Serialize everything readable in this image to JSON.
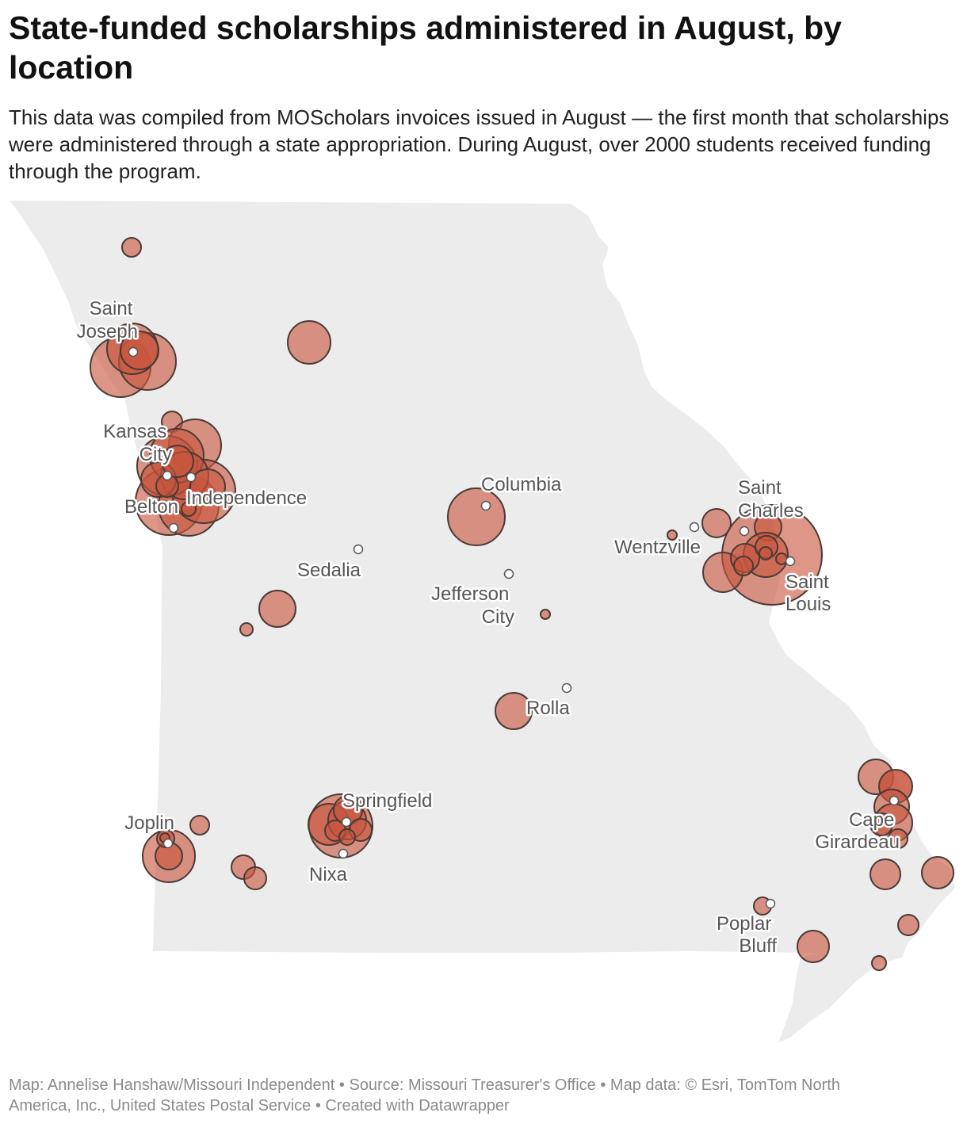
{
  "title": "State-funded scholarships administered in August, by location",
  "subtitle": "This data was compiled from MOScholars invoices issued in August — the first month that scholarships were administered through a state appropriation. During August, over 2000 students received funding through the program.",
  "footer": {
    "line1": "Map: Annelise Hanshaw/Missouri Independent • Source: Missouri Treasurer's Office • Map data: © Esri, TomTom North",
    "line2": "America, Inc., United States Postal Service  • Created with Datawrapper"
  },
  "colors": {
    "bubble": "#c8553d",
    "land": "#ececec",
    "label": "#555555"
  },
  "cities": [
    {
      "key": "saint_joseph",
      "lines": [
        "Saint",
        "Joseph"
      ]
    },
    {
      "key": "kansas_city",
      "lines": [
        "Kansas",
        "City"
      ]
    },
    {
      "key": "independence",
      "lines": [
        "Independence"
      ]
    },
    {
      "key": "belton",
      "lines": [
        "Belton"
      ]
    },
    {
      "key": "sedalia",
      "lines": [
        "Sedalia"
      ]
    },
    {
      "key": "columbia",
      "lines": [
        "Columbia"
      ]
    },
    {
      "key": "jefferson_city",
      "lines": [
        "Jefferson",
        "City"
      ]
    },
    {
      "key": "rolla",
      "lines": [
        "Rolla"
      ]
    },
    {
      "key": "wentzville",
      "lines": [
        "Wentzville"
      ]
    },
    {
      "key": "saint_charles",
      "lines": [
        "Saint",
        "Charles"
      ]
    },
    {
      "key": "saint_louis",
      "lines": [
        "Saint",
        "Louis"
      ]
    },
    {
      "key": "springfield",
      "lines": [
        "Springfield"
      ]
    },
    {
      "key": "nixa",
      "lines": [
        "Nixa"
      ]
    },
    {
      "key": "joplin",
      "lines": [
        "Joplin"
      ]
    },
    {
      "key": "cape_girardeau",
      "lines": [
        "Cape",
        "Girardeau"
      ]
    },
    {
      "key": "poplar_bluff",
      "lines": [
        "Poplar",
        "Bluff"
      ]
    }
  ]
}
